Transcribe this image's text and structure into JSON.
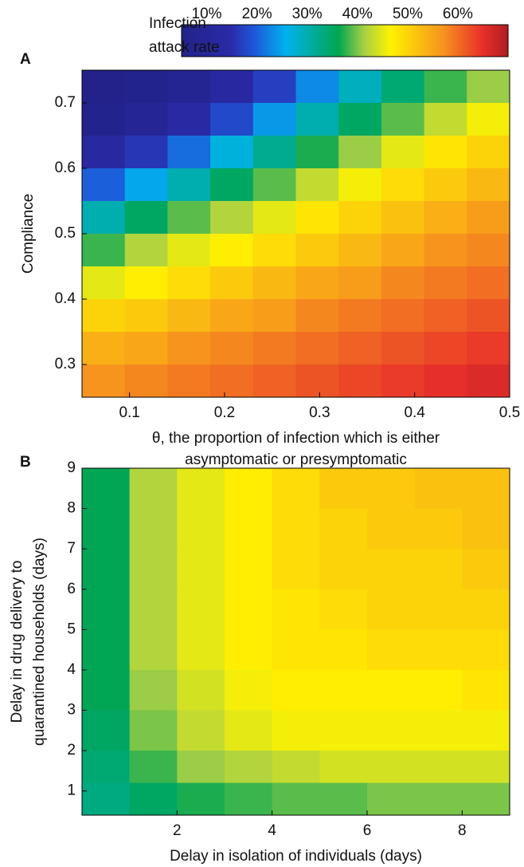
{
  "chart_data": [
    {
      "type": "heatmap",
      "panel": "A",
      "colorbar": {
        "label": [
          "Infection",
          "attack rate"
        ],
        "lim": [
          5,
          70
        ],
        "ticks": [
          {
            "value": 10,
            "label": "10%"
          },
          {
            "value": 20,
            "label": "20%"
          },
          {
            "value": 30,
            "label": "30%"
          },
          {
            "value": 40,
            "label": "40%"
          },
          {
            "value": 50,
            "label": "50%"
          },
          {
            "value": 60,
            "label": "60%"
          }
        ]
      },
      "clim": [
        5,
        70
      ],
      "x_label": [
        "θ, the proportion of infection which is either",
        "asymptomatic or presymptomatic"
      ],
      "y_label": [
        "Compliance"
      ],
      "xlim": [
        0.05,
        0.5
      ],
      "ylim": [
        0.25,
        0.75
      ],
      "xticks": [
        0.1,
        0.2,
        0.3,
        0.4,
        0.5
      ],
      "yticks": [
        0.3,
        0.4,
        0.5,
        0.6,
        0.7
      ],
      "x": [
        0.0725,
        0.1175,
        0.1625,
        0.2075,
        0.2525,
        0.2975,
        0.3425,
        0.3875,
        0.4325,
        0.4775
      ],
      "y": [
        0.725,
        0.675,
        0.625,
        0.575,
        0.525,
        0.475,
        0.425,
        0.375,
        0.325,
        0.275
      ],
      "z": [
        [
          5,
          6,
          8,
          12,
          17,
          23,
          29,
          34,
          38,
          41
        ],
        [
          6,
          9,
          13,
          18,
          24,
          30,
          35,
          39,
          43,
          46
        ],
        [
          12,
          16,
          21,
          27,
          32,
          37,
          41,
          45,
          48,
          50
        ],
        [
          20,
          25,
          30,
          35,
          39,
          43,
          46,
          49,
          51,
          53
        ],
        [
          30,
          35,
          39,
          42,
          45,
          48,
          50,
          52,
          54,
          56
        ],
        [
          38,
          42,
          45,
          47,
          49,
          51,
          53,
          55,
          57,
          58
        ],
        [
          45,
          47,
          49,
          51,
          53,
          55,
          56,
          58,
          59,
          60
        ],
        [
          50,
          51,
          53,
          55,
          56,
          58,
          59,
          60,
          61,
          62
        ],
        [
          54,
          55,
          57,
          58,
          59,
          60,
          61,
          62,
          63,
          64
        ],
        [
          57,
          58,
          59,
          60,
          61,
          62,
          63,
          64,
          65,
          66
        ]
      ]
    },
    {
      "type": "heatmap",
      "panel": "B",
      "clim": [
        5,
        70
      ],
      "x_label": [
        "Delay in isolation of individuals (days)"
      ],
      "y_label": [
        "Delay in drug delivery to",
        "quarantined households (days)"
      ],
      "xlim": [
        0,
        9
      ],
      "ylim": [
        0.4,
        9
      ],
      "xticks": [
        2,
        4,
        6,
        8
      ],
      "yticks": [
        1,
        2,
        3,
        4,
        5,
        6,
        7,
        8,
        9
      ],
      "x": [
        0.5,
        1.5,
        2.5,
        3.5,
        4.5,
        5.5,
        6.5,
        7.5,
        8.5
      ],
      "y": [
        8.5,
        7.5,
        6.5,
        5.5,
        4.5,
        3.5,
        2.5,
        1.5,
        0.9
      ],
      "z": [
        [
          36,
          42,
          45,
          47,
          49,
          51,
          51,
          52,
          52
        ],
        [
          36,
          42,
          45,
          47,
          49,
          50,
          51,
          51,
          52
        ],
        [
          36,
          42,
          45,
          47,
          49,
          50,
          50,
          50,
          51
        ],
        [
          36,
          42,
          45,
          47,
          48,
          49,
          50,
          50,
          50
        ],
        [
          36,
          42,
          45,
          47,
          48,
          48,
          49,
          49,
          49
        ],
        [
          36,
          41,
          44,
          46,
          47,
          47,
          47,
          47,
          48
        ],
        [
          35,
          40,
          43,
          45,
          46,
          46,
          46,
          46,
          46
        ],
        [
          34,
          38,
          41,
          42,
          43,
          44,
          44,
          44,
          44
        ],
        [
          33,
          35,
          37,
          38,
          39,
          39,
          40,
          40,
          40
        ]
      ]
    }
  ]
}
